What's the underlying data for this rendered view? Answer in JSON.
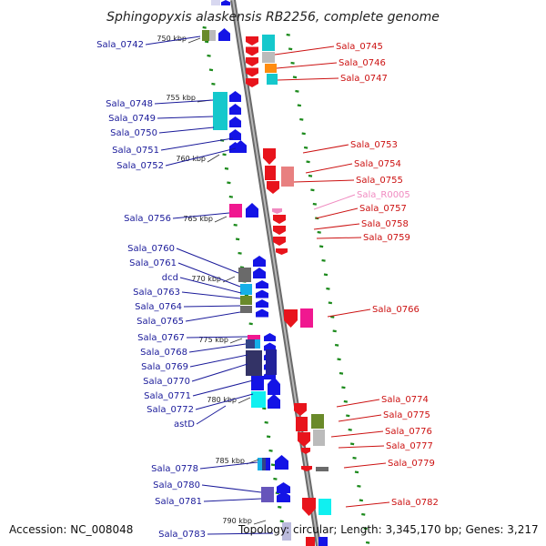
{
  "title": "Sphingopyxis alaskensis RB2256, complete genome",
  "footer": {
    "accession": "Accession: NC_008048",
    "summary": "Topology: circular; Length: 3,345,170 bp; Genes: 3,217"
  },
  "colors": {
    "backbone": "#8a8a8a",
    "forward": "#e8141c",
    "reverse": "#1414e6",
    "rna": "#f08ac0",
    "tick": "#1c8a1c",
    "label_left": "#1a1a9a",
    "label_right": "#cc1111"
  },
  "kbp_markers": [
    "750 kbp",
    "755 kbp",
    "760 kbp",
    "765 kbp",
    "770 kbp",
    "775 kbp",
    "780 kbp",
    "785 kbp",
    "790 kbp"
  ],
  "genes_left": [
    "Sala_0742",
    "Sala_0748",
    "Sala_0749",
    "Sala_0750",
    "Sala_0751",
    "Sala_0752",
    "Sala_0756",
    "Sala_0760",
    "Sala_0761",
    "dcd",
    "Sala_0763",
    "Sala_0764",
    "Sala_0765",
    "Sala_0767",
    "Sala_0768",
    "Sala_0769",
    "Sala_0770",
    "Sala_0771",
    "Sala_0772",
    "astD",
    "Sala_0778",
    "Sala_0780",
    "Sala_0781",
    "Sala_0783"
  ],
  "genes_right": [
    "Sala_0745",
    "Sala_0746",
    "Sala_0747",
    "Sala_0753",
    "Sala_0754",
    "Sala_0755",
    "Sala_R0005",
    "Sala_0757",
    "Sala_0758",
    "Sala_0759",
    "Sala_0766",
    "Sala_0774",
    "Sala_0775",
    "Sala_0776",
    "Sala_0777",
    "Sala_0779",
    "Sala_0782"
  ]
}
